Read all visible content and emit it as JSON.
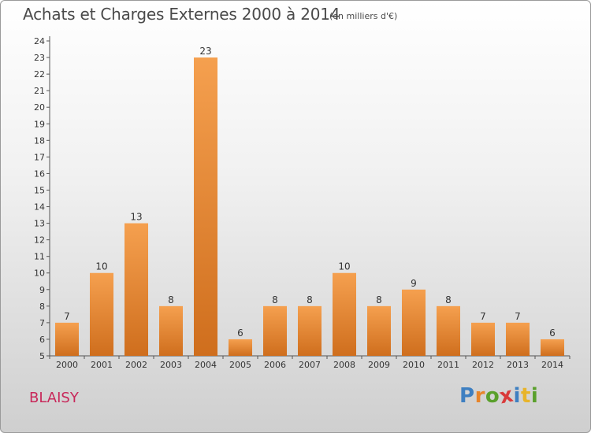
{
  "header": {
    "title": "Achats et Charges Externes 2000 à 2014",
    "subtitle": "(en milliers d'€)"
  },
  "footer": {
    "commune": "BLAISY",
    "logo_text": "Proxiti",
    "logo_letters": [
      "P",
      "r",
      "o",
      "x",
      "i",
      "t",
      "i"
    ]
  },
  "colors": {
    "bar_light": "#f5a04f",
    "bar_dark": "#cf6e1d",
    "commune": "#c8285a",
    "logo": [
      "#3e7fc1",
      "#e8852a",
      "#5aa02c",
      "#d93a3a",
      "#3e7fc1",
      "#e8b42a",
      "#5aa02c"
    ]
  },
  "chart_data": {
    "type": "bar",
    "title": "Achats et Charges Externes 2000 à 2014",
    "subtitle": "(en milliers d'€)",
    "xlabel": "",
    "ylabel": "",
    "categories": [
      "2000",
      "2001",
      "2002",
      "2003",
      "2004",
      "2005",
      "2006",
      "2007",
      "2008",
      "2009",
      "2010",
      "2011",
      "2012",
      "2013",
      "2014"
    ],
    "values": [
      7,
      10,
      13,
      8,
      23,
      6,
      8,
      8,
      10,
      8,
      9,
      8,
      7,
      7,
      6
    ],
    "ylim": [
      5,
      24
    ],
    "yticks": [
      "5",
      "6",
      "7",
      "8",
      "9",
      "10",
      "11",
      "12",
      "13",
      "14",
      "15",
      "16",
      "17",
      "18",
      "19",
      "20",
      "21",
      "22",
      "23",
      "24"
    ],
    "grid": false,
    "legend": "none"
  }
}
